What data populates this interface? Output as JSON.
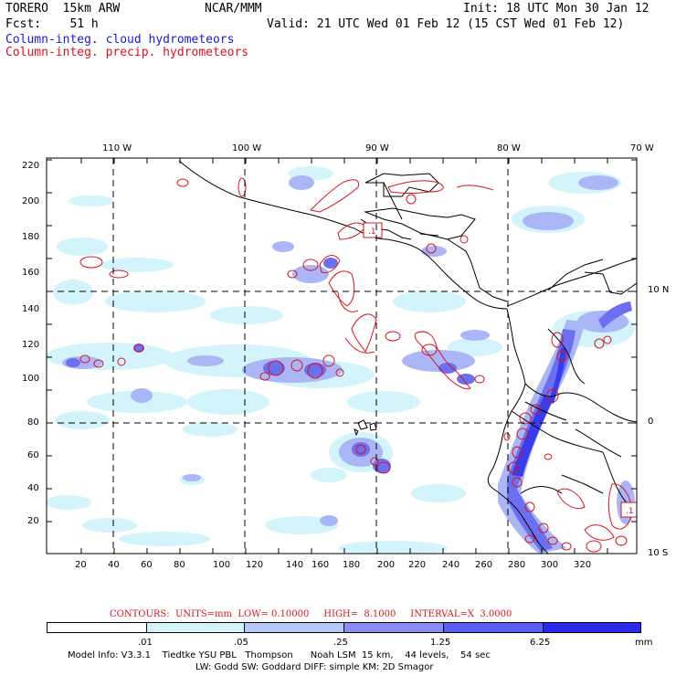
{
  "header": {
    "model": "TORERO  15km ARW",
    "center": "NCAR/MMM",
    "init": "Init: 18 UTC Mon 30 Jan 12",
    "fcst": "Fcst:    51 h",
    "valid": "Valid: 21 UTC Wed 01 Feb 12 (15 CST Wed 01 Feb 12)",
    "field1": "Column-integ. cloud hydrometeors",
    "field2": "Column-integ. precip. hydrometeors"
  },
  "axes": {
    "top_lon_labels": [
      "110 W",
      "100 W",
      "90 W",
      "80 W",
      "70 W"
    ],
    "right_lat_labels": [
      "10 N",
      "0",
      "10 S"
    ],
    "x_ticks": [
      "20",
      "40",
      "60",
      "80",
      "100",
      "120",
      "140",
      "160",
      "180",
      "200",
      "220",
      "240",
      "260",
      "280",
      "300",
      "320"
    ],
    "y_ticks": [
      "20",
      "40",
      "60",
      "80",
      "100",
      "120",
      "140",
      "160",
      "180",
      "200",
      "220"
    ]
  },
  "contour_info": {
    "label": "CONTOURS:  UNITS=mm  LOW= 0.10000     HIGH=  8.1000     INTERVAL=X  3.0000"
  },
  "colorbar": {
    "units": "mm",
    "tick_labels": [
      ".01",
      ".05",
      ".25",
      "1.25",
      "6.25"
    ],
    "colors": [
      "#ffffff",
      "#d2f4fa",
      "#b4c8f8",
      "#8a8ef4",
      "#5c5ef2",
      "#3434ee",
      "#1f1fe8"
    ]
  },
  "footer": {
    "line1": "Model Info: V3.3.1    Tiedtke YSU PBL   Thompson      Noah LSM  15 km,    44 levels,    54 sec",
    "line2": "LW: Godd SW: Goddard DIFF: simple KM: 2D Smagor"
  },
  "map_labels": {
    "box1": ".1",
    "box2": ".1"
  },
  "colors": {
    "cloud": "#1a1ad6",
    "precip": "#d8141e"
  }
}
